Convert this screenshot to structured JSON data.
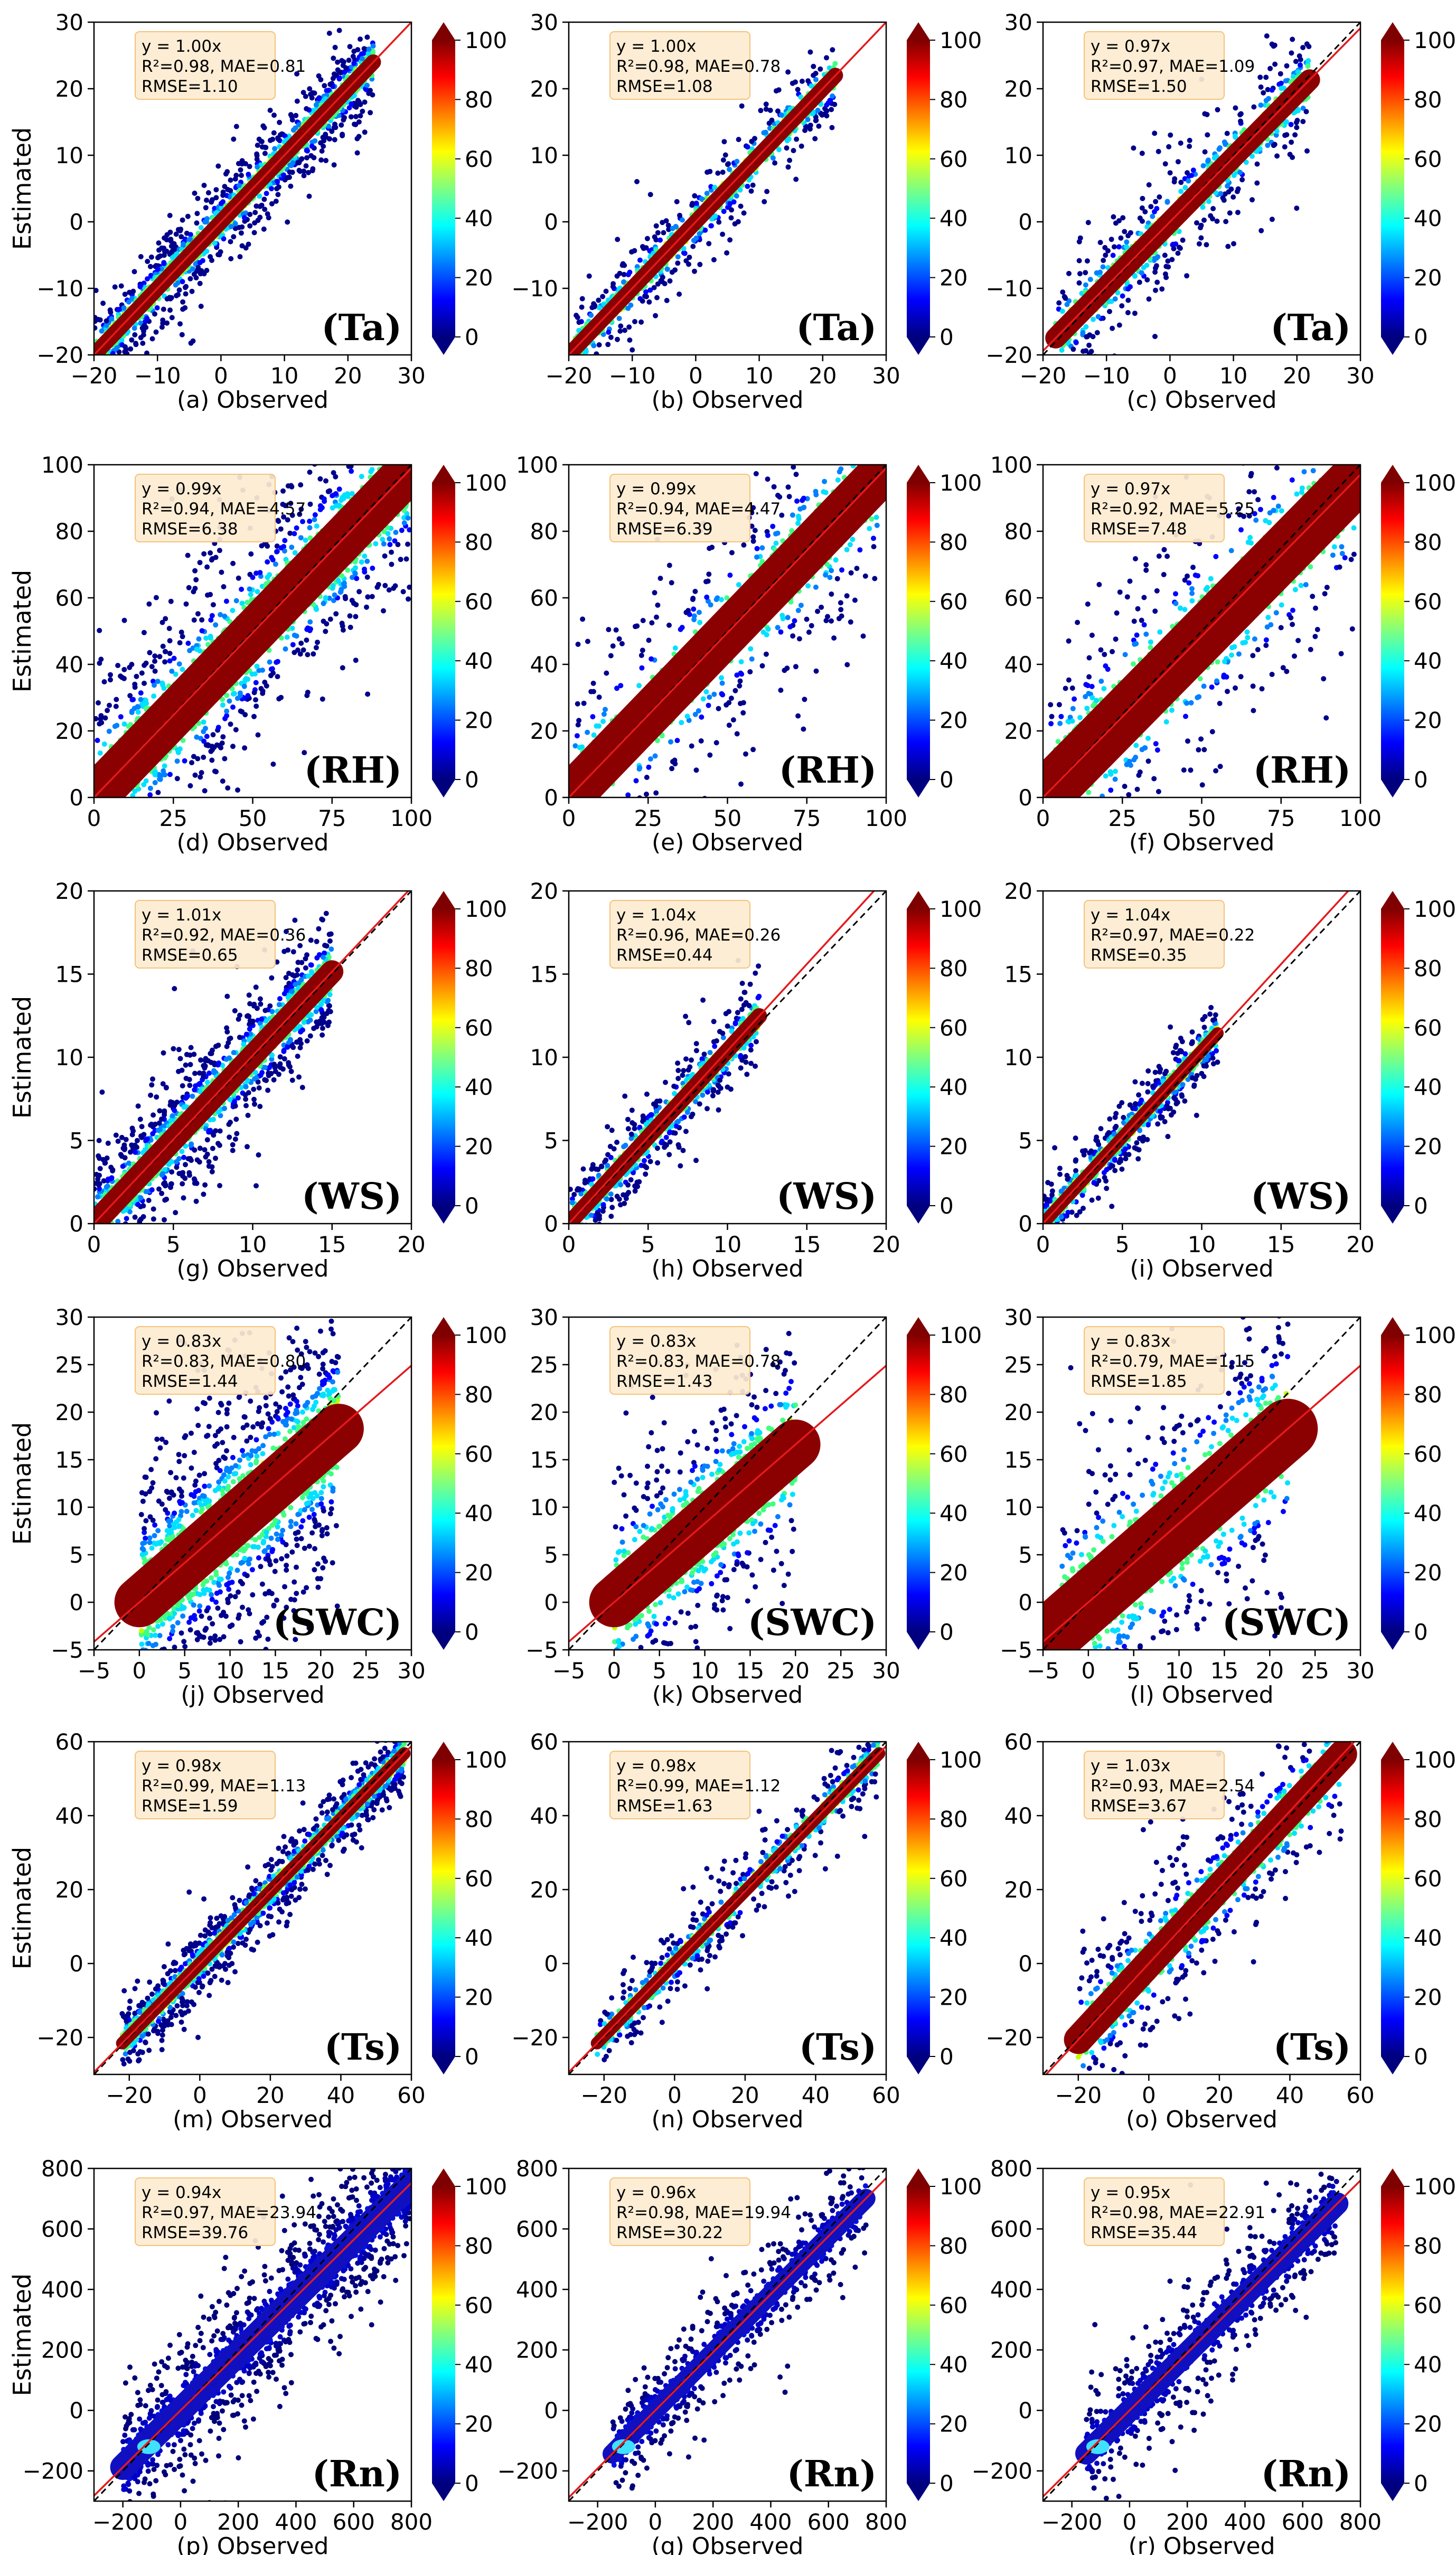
{
  "figure": {
    "y_axis_title": "Estimated",
    "colorbar_ticks": [
      "0",
      "20",
      "40",
      "60",
      "80",
      "100"
    ],
    "colorbar_range": [
      0,
      100
    ],
    "colors": {
      "fit_line": "#e41a1c",
      "identity_line": "#000000",
      "stats_box_fill": "#fdebd0",
      "stats_box_edge": "#f5c27a",
      "dense_core": "#8b0000"
    },
    "colormap": "jet"
  },
  "chart_data": [
    {
      "id": "a",
      "type": "scatter",
      "variable": "Ta",
      "label": "(Ta)",
      "xlabel": "(a) Observed",
      "ylabel": "Estimated",
      "xlim": [
        -20,
        30
      ],
      "ylim": [
        -20,
        30
      ],
      "xticks": [
        -20,
        -10,
        0,
        10,
        20,
        30
      ],
      "yticks": [
        -20,
        -10,
        0,
        10,
        20,
        30
      ],
      "data_range": [
        -20,
        24
      ],
      "spread": 1.1,
      "fit_slope": 1.0,
      "stats": [
        "y = 1.00x",
        "R²=0.98, MAE=0.81",
        "RMSE=1.10"
      ],
      "density": "high",
      "colorbar": "0–100"
    },
    {
      "id": "b",
      "type": "scatter",
      "variable": "Ta",
      "label": "(Ta)",
      "xlabel": "(b) Observed",
      "ylabel": "",
      "xlim": [
        -20,
        30
      ],
      "ylim": [
        -20,
        30
      ],
      "xticks": [
        -20,
        -10,
        0,
        10,
        20,
        30
      ],
      "yticks": [
        -10,
        0,
        10,
        20,
        30
      ],
      "data_range": [
        -19,
        22
      ],
      "spread": 1.1,
      "fit_slope": 1.0,
      "stats": [
        "y = 1.00x",
        "R²=0.98, MAE=0.78",
        "RMSE=1.08"
      ],
      "density": "medium",
      "colorbar": "0–100"
    },
    {
      "id": "c",
      "type": "scatter",
      "variable": "Ta",
      "label": "(Ta)",
      "xlabel": "(c) Observed",
      "ylabel": "",
      "xlim": [
        -20,
        30
      ],
      "ylim": [
        -20,
        30
      ],
      "xticks": [
        -20,
        -10,
        0,
        10,
        20,
        30
      ],
      "yticks": [
        -20,
        -10,
        0,
        10,
        20,
        30
      ],
      "data_range": [
        -18,
        22
      ],
      "spread": 1.5,
      "fit_slope": 0.97,
      "stats": [
        "y = 0.97x",
        "R²=0.97, MAE=1.09",
        "RMSE=1.50"
      ],
      "density": "medium",
      "colorbar": "0–100"
    },
    {
      "id": "d",
      "type": "scatter",
      "variable": "RH",
      "label": "(RH)",
      "xlabel": "(d) Observed",
      "ylabel": "Estimated",
      "xlim": [
        0,
        100
      ],
      "ylim": [
        0,
        100
      ],
      "xticks": [
        0,
        25,
        50,
        75,
        100
      ],
      "yticks": [
        0,
        20,
        40,
        60,
        80,
        100
      ],
      "data_range": [
        0,
        100
      ],
      "spread": 6.4,
      "fit_slope": 0.99,
      "stats": [
        "y = 0.99x",
        "R²=0.94, MAE=4.57",
        "RMSE=6.38"
      ],
      "density": "high",
      "colorbar": "0–100"
    },
    {
      "id": "e",
      "type": "scatter",
      "variable": "RH",
      "label": "(RH)",
      "xlabel": "(e) Observed",
      "ylabel": "",
      "xlim": [
        0,
        100
      ],
      "ylim": [
        0,
        100
      ],
      "xticks": [
        0,
        25,
        50,
        75,
        100
      ],
      "yticks": [
        0,
        20,
        40,
        60,
        80,
        100
      ],
      "data_range": [
        2,
        98
      ],
      "spread": 6.4,
      "fit_slope": 0.99,
      "stats": [
        "y = 0.99x",
        "R²=0.94, MAE=4.47",
        "RMSE=6.39"
      ],
      "density": "medium",
      "colorbar": "0–100"
    },
    {
      "id": "f",
      "type": "scatter",
      "variable": "RH",
      "label": "(RH)",
      "xlabel": "(f) Observed",
      "ylabel": "",
      "xlim": [
        0,
        100
      ],
      "ylim": [
        0,
        100
      ],
      "xticks": [
        0,
        25,
        50,
        75,
        100
      ],
      "yticks": [
        0,
        20,
        40,
        60,
        80,
        100
      ],
      "data_range": [
        2,
        98
      ],
      "spread": 7.5,
      "fit_slope": 0.97,
      "stats": [
        "y = 0.97x",
        "R²=0.92, MAE=5.25",
        "RMSE=7.48"
      ],
      "density": "medium",
      "colorbar": "0–100"
    },
    {
      "id": "g",
      "type": "scatter",
      "variable": "WS",
      "label": "(WS)",
      "xlabel": "(g) Observed",
      "ylabel": "Estimated",
      "xlim": [
        0,
        20
      ],
      "ylim": [
        0,
        20
      ],
      "xticks": [
        0,
        5,
        10,
        15,
        20
      ],
      "yticks": [
        0,
        5,
        10,
        15,
        20
      ],
      "data_range": [
        0,
        15
      ],
      "spread": 0.65,
      "fit_slope": 1.01,
      "stats": [
        "y = 1.01x",
        "R²=0.92, MAE=0.36",
        "RMSE=0.65"
      ],
      "density": "high",
      "colorbar": "0–100"
    },
    {
      "id": "h",
      "type": "scatter",
      "variable": "WS",
      "label": "(WS)",
      "xlabel": "(h) Observed",
      "ylabel": "",
      "xlim": [
        0,
        20
      ],
      "ylim": [
        0,
        20
      ],
      "xticks": [
        0,
        5,
        10,
        15,
        20
      ],
      "yticks": [
        0,
        5,
        10,
        15,
        20
      ],
      "data_range": [
        0,
        12
      ],
      "spread": 0.45,
      "fit_slope": 1.04,
      "stats": [
        "y = 1.04x",
        "R²=0.96, MAE=0.26",
        "RMSE=0.44"
      ],
      "density": "medium",
      "colorbar": "0–100"
    },
    {
      "id": "i",
      "type": "scatter",
      "variable": "WS",
      "label": "(WS)",
      "xlabel": "(i) Observed",
      "ylabel": "",
      "xlim": [
        0,
        20
      ],
      "ylim": [
        0,
        20
      ],
      "xticks": [
        0,
        5,
        10,
        15,
        20
      ],
      "yticks": [
        0,
        5,
        10,
        15,
        20
      ],
      "data_range": [
        0,
        11
      ],
      "spread": 0.35,
      "fit_slope": 1.04,
      "stats": [
        "y = 1.04x",
        "R²=0.97, MAE=0.22",
        "RMSE=0.35"
      ],
      "density": "medium",
      "colorbar": "0–100"
    },
    {
      "id": "j",
      "type": "scatter",
      "variable": "SWC",
      "label": "(SWC)",
      "xlabel": "(j) Observed",
      "ylabel": "Estimated",
      "xlim": [
        -5,
        30
      ],
      "ylim": [
        -5,
        30
      ],
      "xticks": [
        -5,
        0,
        5,
        10,
        15,
        20,
        25,
        30
      ],
      "yticks": [
        -5,
        0,
        5,
        10,
        15,
        20,
        25,
        30
      ],
      "data_range": [
        0,
        22
      ],
      "spread": 2.5,
      "fit_slope": 0.83,
      "stats": [
        "y = 0.83x",
        "R²=0.83, MAE=0.80",
        "RMSE=1.44"
      ],
      "density": "high",
      "colorbar": "0–100"
    },
    {
      "id": "k",
      "type": "scatter",
      "variable": "SWC",
      "label": "(SWC)",
      "xlabel": "(k) Observed",
      "ylabel": "",
      "xlim": [
        -5,
        30
      ],
      "ylim": [
        -5,
        30
      ],
      "xticks": [
        -5,
        0,
        5,
        10,
        15,
        20,
        25,
        30
      ],
      "yticks": [
        -5,
        0,
        5,
        10,
        15,
        20,
        25,
        30
      ],
      "data_range": [
        0,
        20
      ],
      "spread": 2.5,
      "fit_slope": 0.83,
      "stats": [
        "y = 0.83x",
        "R²=0.83, MAE=0.78",
        "RMSE=1.43"
      ],
      "density": "medium",
      "colorbar": "0–100"
    },
    {
      "id": "l",
      "type": "scatter",
      "variable": "SWC",
      "label": "(SWC)",
      "xlabel": "(l) Observed",
      "ylabel": "",
      "xlim": [
        -5,
        30
      ],
      "ylim": [
        -5,
        30
      ],
      "xticks": [
        -5,
        0,
        5,
        10,
        15,
        20,
        25,
        30
      ],
      "yticks": [
        -5,
        0,
        5,
        10,
        15,
        20,
        25,
        30
      ],
      "data_range": [
        -3,
        22
      ],
      "spread": 3.0,
      "fit_slope": 0.83,
      "stats": [
        "y = 0.83x",
        "R²=0.79, MAE=1.15",
        "RMSE=1.85"
      ],
      "density": "medium",
      "colorbar": "0–100"
    },
    {
      "id": "m",
      "type": "scatter",
      "variable": "Ts",
      "label": "(Ts)",
      "xlabel": "(m) Observed",
      "ylabel": "Estimated",
      "xlim": [
        -30,
        60
      ],
      "ylim": [
        -30,
        60
      ],
      "xticks": [
        -20,
        0,
        20,
        40,
        60
      ],
      "yticks": [
        -20,
        0,
        20,
        40,
        60
      ],
      "data_range": [
        -22,
        58
      ],
      "spread": 1.6,
      "fit_slope": 0.98,
      "stats": [
        "y = 0.98x",
        "R²=0.99, MAE=1.13",
        "RMSE=1.59"
      ],
      "density": "high",
      "colorbar": "0–100"
    },
    {
      "id": "n",
      "type": "scatter",
      "variable": "Ts",
      "label": "(Ts)",
      "xlabel": "(n) Observed",
      "ylabel": "",
      "xlim": [
        -30,
        60
      ],
      "ylim": [
        -30,
        60
      ],
      "xticks": [
        -20,
        0,
        20,
        40,
        60
      ],
      "yticks": [
        -20,
        0,
        20,
        40,
        60
      ],
      "data_range": [
        -22,
        58
      ],
      "spread": 1.6,
      "fit_slope": 0.98,
      "stats": [
        "y = 0.98x",
        "R²=0.99, MAE=1.12",
        "RMSE=1.63"
      ],
      "density": "medium",
      "colorbar": "0–100"
    },
    {
      "id": "o",
      "type": "scatter",
      "variable": "Ts",
      "label": "(Ts)",
      "xlabel": "(o) Observed",
      "ylabel": "",
      "xlim": [
        -30,
        60
      ],
      "ylim": [
        -30,
        60
      ],
      "xticks": [
        -20,
        0,
        20,
        40,
        60
      ],
      "yticks": [
        -20,
        0,
        20,
        40,
        60
      ],
      "data_range": [
        -20,
        55
      ],
      "spread": 3.7,
      "fit_slope": 1.03,
      "stats": [
        "y = 1.03x",
        "R²=0.93, MAE=2.54",
        "RMSE=3.67"
      ],
      "density": "medium",
      "colorbar": "0–100"
    },
    {
      "id": "p",
      "type": "scatter",
      "variable": "Rn",
      "label": "(Rn)",
      "xlabel": "(p) Observed",
      "ylabel": "Estimated",
      "xlim": [
        -300,
        800
      ],
      "ylim": [
        -300,
        800
      ],
      "xticks": [
        -200,
        0,
        200,
        400,
        600,
        800
      ],
      "yticks": [
        -200,
        0,
        200,
        400,
        600,
        800
      ],
      "data_range": [
        -200,
        800
      ],
      "spread": 40,
      "fit_slope": 0.94,
      "stats": [
        "y = 0.94x",
        "R²=0.97, MAE=23.94",
        "RMSE=39.76"
      ],
      "density": "high",
      "colorbar": "0–100",
      "palette": "cool"
    },
    {
      "id": "q",
      "type": "scatter",
      "variable": "Rn",
      "label": "(Rn)",
      "xlabel": "(q) Observed",
      "ylabel": "",
      "xlim": [
        -300,
        800
      ],
      "ylim": [
        -300,
        800
      ],
      "xticks": [
        -200,
        0,
        200,
        400,
        600,
        800
      ],
      "yticks": [
        -200,
        0,
        200,
        400,
        600,
        800
      ],
      "data_range": [
        -150,
        730
      ],
      "spread": 30,
      "fit_slope": 0.96,
      "stats": [
        "y = 0.96x",
        "R²=0.98, MAE=19.94",
        "RMSE=30.22"
      ],
      "density": "medium",
      "colorbar": "0–100",
      "palette": "cool"
    },
    {
      "id": "r",
      "type": "scatter",
      "variable": "Rn",
      "label": "(Rn)",
      "xlabel": "(r) Observed",
      "ylabel": "",
      "xlim": [
        -300,
        800
      ],
      "ylim": [
        -300,
        800
      ],
      "xticks": [
        -200,
        0,
        200,
        400,
        600,
        800
      ],
      "yticks": [
        -200,
        0,
        200,
        400,
        600,
        800
      ],
      "data_range": [
        -150,
        720
      ],
      "spread": 35,
      "fit_slope": 0.95,
      "stats": [
        "y = 0.95x",
        "R²=0.98, MAE=22.91",
        "RMSE=35.44"
      ],
      "density": "medium",
      "colorbar": "0–100",
      "palette": "cool"
    }
  ]
}
